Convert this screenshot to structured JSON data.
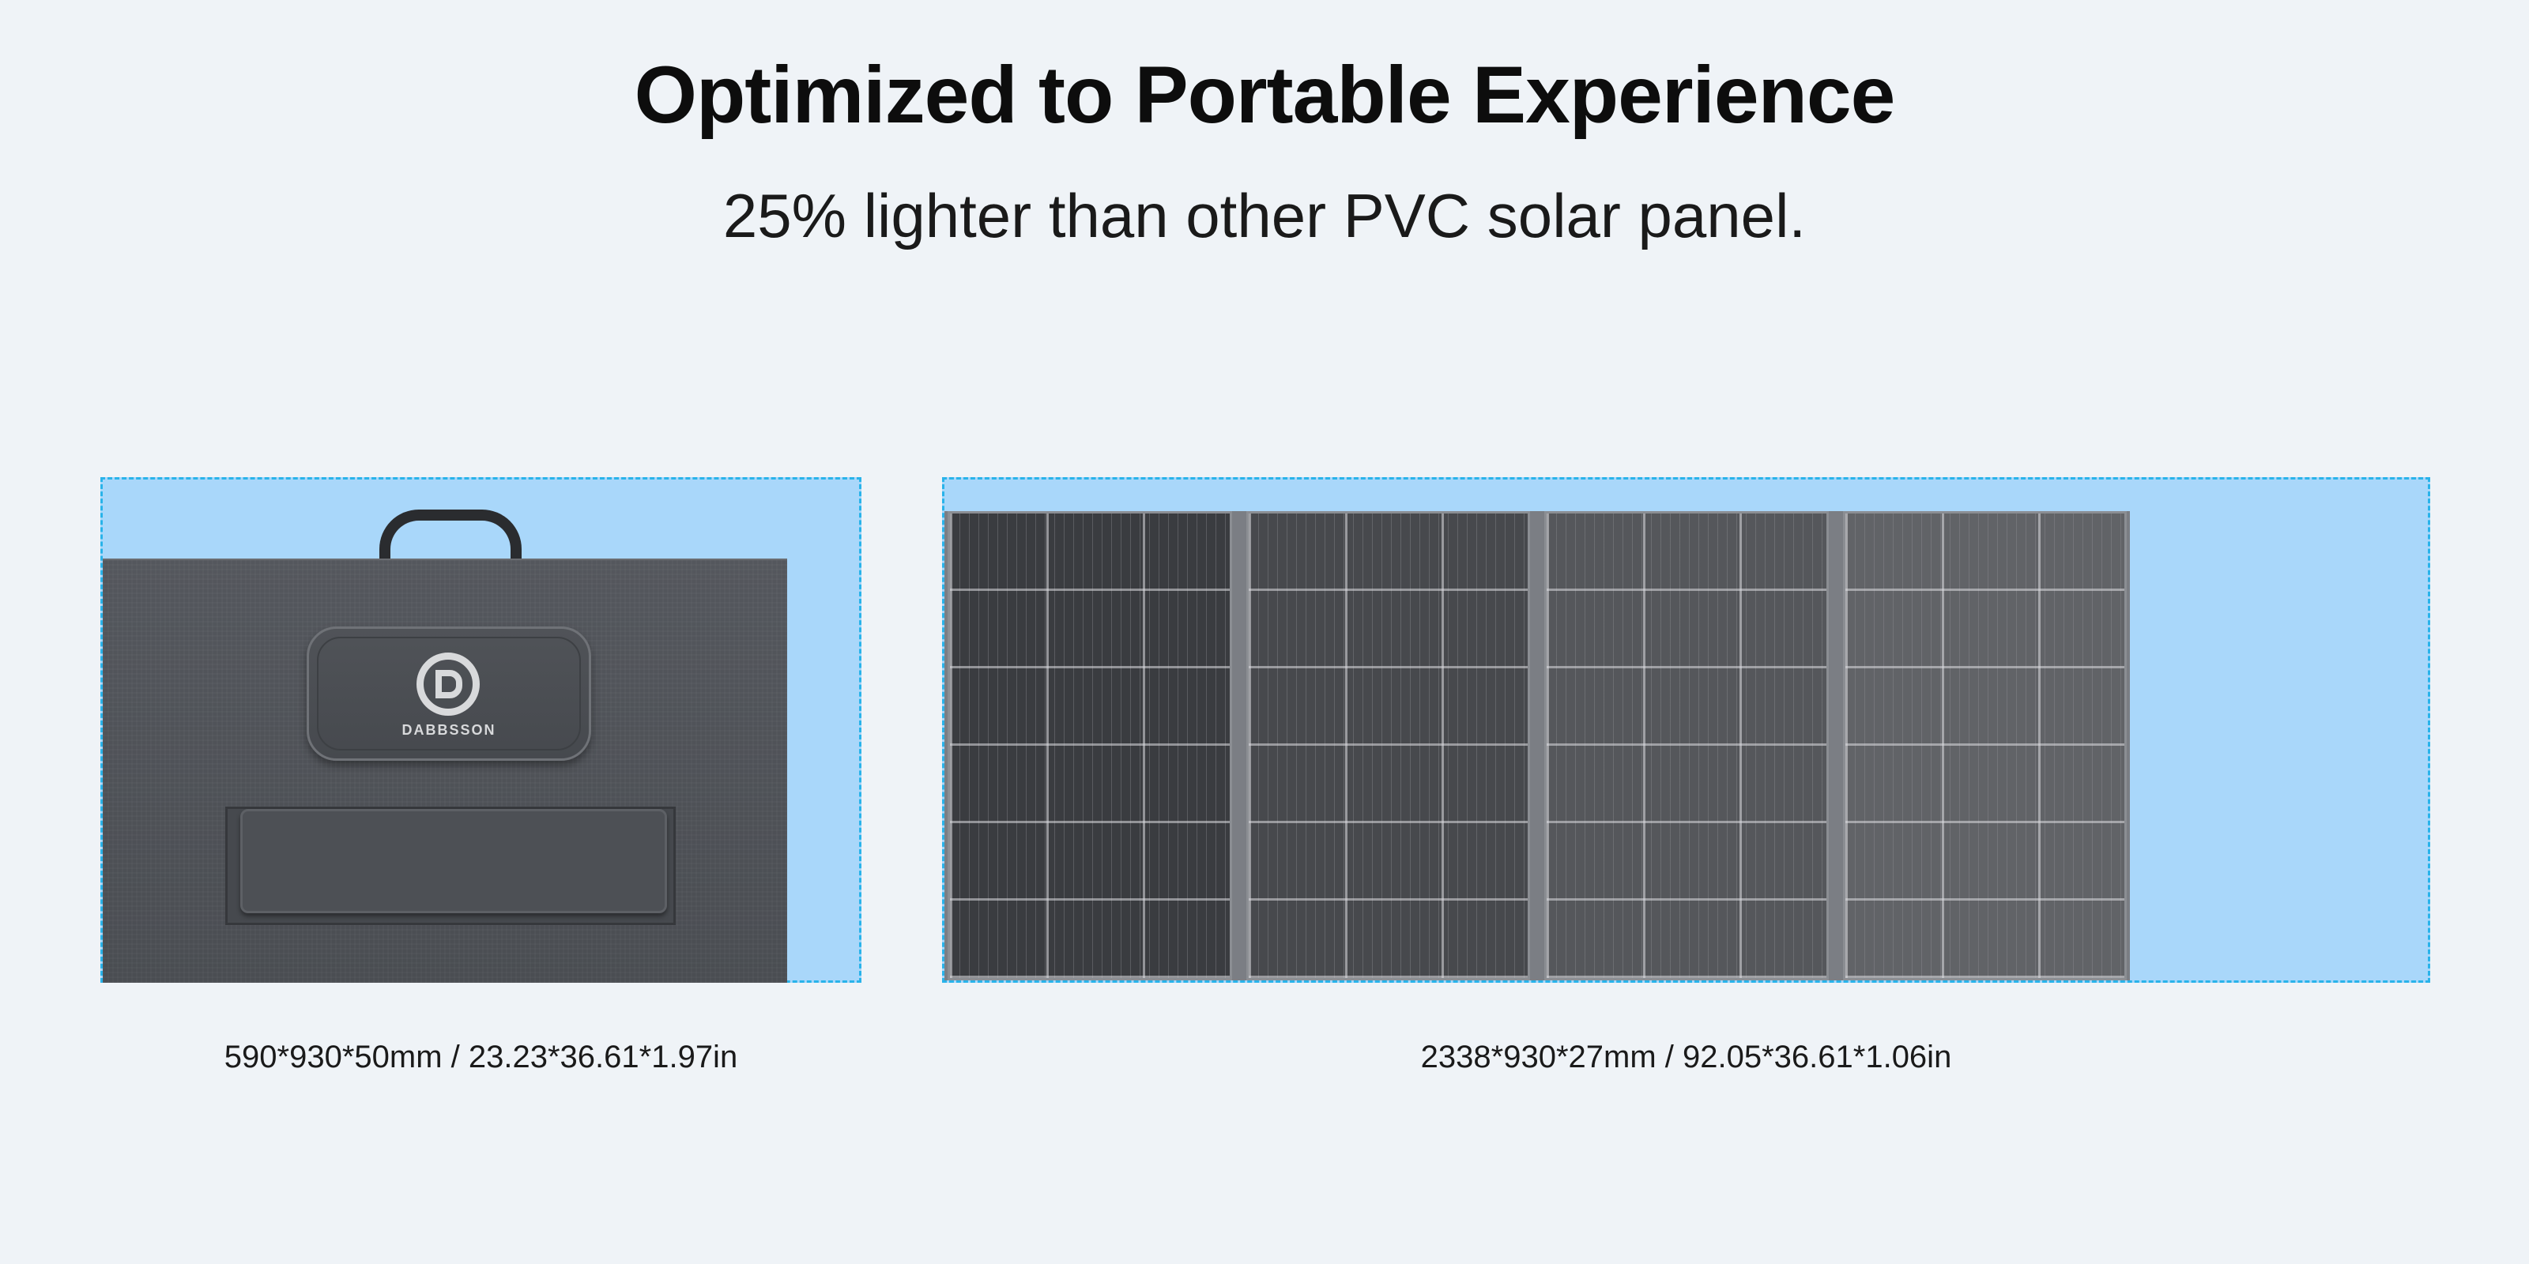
{
  "header": {
    "title": "Optimized to Portable Experience",
    "subtitle": "25% lighter than other PVC solar panel."
  },
  "folded": {
    "brand": "DABBSSON",
    "dimensions": "590*930*50mm / 23.23*36.61*1.97in"
  },
  "unfolded": {
    "dimensions": "2338*930*27mm / 92.05*36.61*1.06in"
  },
  "colors": {
    "background": "#eff3f7",
    "highlight_box": "#a9d7fa",
    "dashed_border": "#29b3ea"
  }
}
